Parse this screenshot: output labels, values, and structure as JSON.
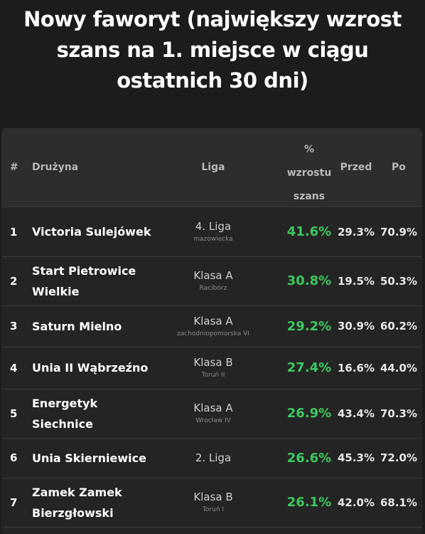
{
  "title": {
    "line1": "Nowy faworyt (największy wzrost",
    "line2": "szans na 1. miejsce w ciągu",
    "line3": "ostatnich 30 dni)"
  },
  "table": {
    "headers": {
      "rank": "#",
      "team": "Drużyna",
      "league": "Liga",
      "increase_1": "%",
      "increase_2": "wzrostu",
      "increase_3": "szans",
      "before": "Przed",
      "after": "Po"
    },
    "rows": [
      {
        "rank": "1",
        "team": "Victoria Sulejówek",
        "league": "4. Liga",
        "region": "mazowiecka",
        "increase": "41.6%",
        "before": "29.3%",
        "after": "70.9%"
      },
      {
        "rank": "2",
        "team": "Start Pietrowice Wielkie",
        "league": "Klasa A",
        "region": "Racibórz",
        "increase": "30.8%",
        "before": "19.5%",
        "after": "50.3%"
      },
      {
        "rank": "3",
        "team": "Saturn Mielno",
        "league": "Klasa A",
        "region": "zachodniopomorska VI",
        "increase": "29.2%",
        "before": "30.9%",
        "after": "60.2%"
      },
      {
        "rank": "4",
        "team": "Unia II Wąbrzeźno",
        "league": "Klasa B",
        "region": "Toruń II",
        "increase": "27.4%",
        "before": "16.6%",
        "after": "44.0%"
      },
      {
        "rank": "5",
        "team": "Energetyk Siechnice",
        "league": "Klasa A",
        "region": "Wrocław IV",
        "increase": "26.9%",
        "before": "43.4%",
        "after": "70.3%"
      },
      {
        "rank": "6",
        "team": "Unia Skierniewice",
        "league": "2. Liga",
        "region": "",
        "increase": "26.6%",
        "before": "45.3%",
        "after": "72.0%"
      },
      {
        "rank": "7",
        "team": "Zamek Zamek Bierzgłowski",
        "league": "Klasa B",
        "region": "Toruń I",
        "increase": "26.1%",
        "before": "42.0%",
        "after": "68.1%"
      }
    ]
  },
  "colors": {
    "background": "#1c1c1c",
    "panel": "#242424",
    "header": "#2d2d2d",
    "increase_green": "#3cc85f"
  }
}
